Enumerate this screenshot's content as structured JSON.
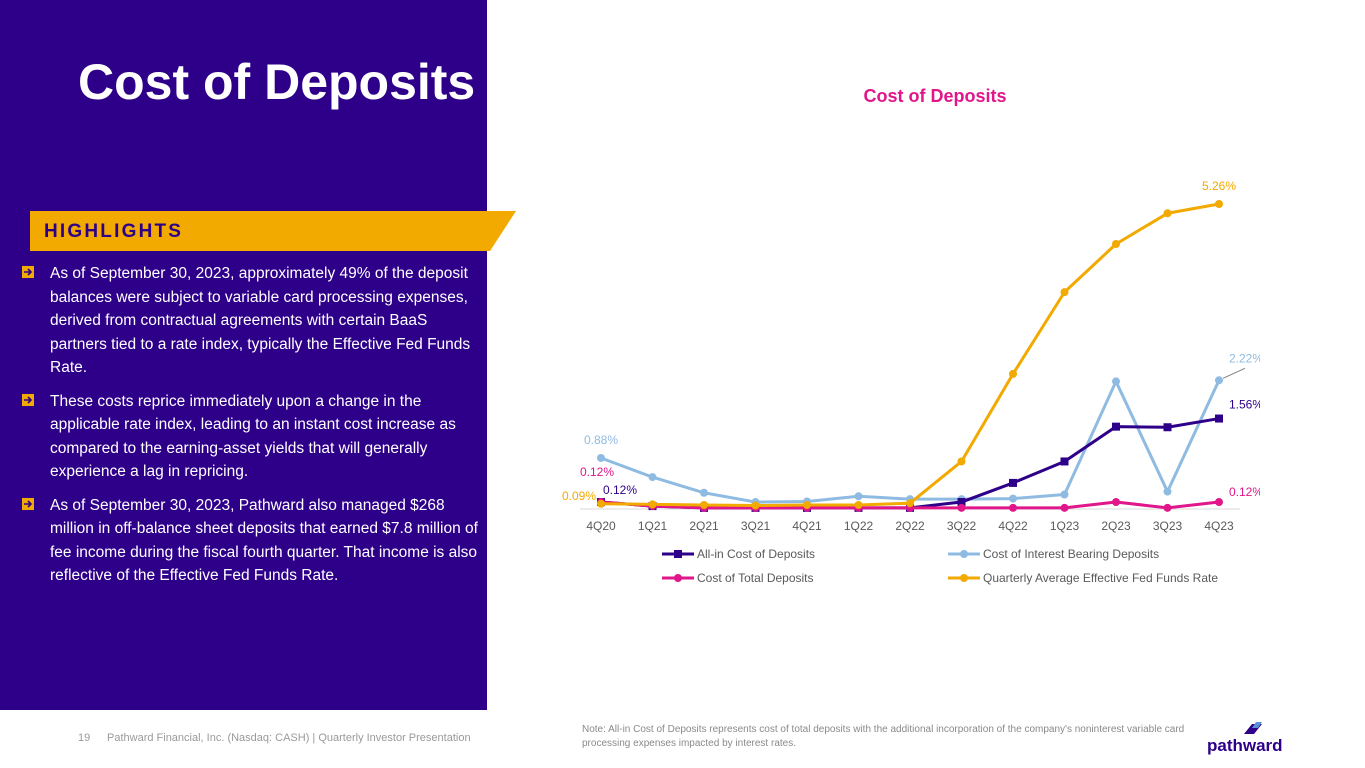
{
  "slide": {
    "title": "Cost of Deposits",
    "highlights_label": "HIGHLIGHTS",
    "bullets": [
      "As of September 30, 2023, approximately 49% of the deposit balances were subject to variable card processing expenses, derived from contractual agreements with certain BaaS partners tied to a rate index, typically the Effective Fed Funds Rate.",
      "These costs reprice immediately upon a change in the applicable rate index, leading to an instant cost increase as compared to the earning-asset yields that will generally experience a lag in repricing.",
      "As of September 30, 2023, Pathward also managed $268 million in off-balance sheet deposits that earned $7.8 million of fee income during the fiscal fourth quarter. That income is also reflective of the Effective Fed Funds Rate."
    ],
    "colors": {
      "panel": "#2e0089",
      "accent": "#f2a900",
      "magenta": "#e0168a"
    }
  },
  "footer": {
    "page_number": "19",
    "company": "Pathward Financial, Inc. (Nasdaq: CASH) | Quarterly Investor Presentation",
    "note": "Note: All-in Cost of Deposits represents cost of total deposits with the additional incorporation of the company's noninterest variable card processing expenses impacted by interest rates.",
    "logo_text": "pathward"
  },
  "chart_data": {
    "type": "line",
    "title": "Cost of Deposits",
    "categories": [
      "4Q20",
      "1Q21",
      "2Q21",
      "3Q21",
      "4Q21",
      "1Q22",
      "2Q22",
      "3Q22",
      "4Q22",
      "1Q23",
      "2Q23",
      "3Q23",
      "4Q23"
    ],
    "ylim": [
      0,
      5.5
    ],
    "grid": false,
    "legend_position": "bottom",
    "series": [
      {
        "name": "All-in Cost of Deposits",
        "color": "#2e0089",
        "marker": "square",
        "values": [
          0.12,
          0.05,
          0.02,
          0.02,
          0.02,
          0.02,
          0.02,
          0.12,
          0.45,
          0.82,
          1.42,
          1.41,
          1.56
        ]
      },
      {
        "name": "Cost of Interest Bearing Deposits",
        "color": "#8fbbe2",
        "marker": "circle",
        "values": [
          0.88,
          0.55,
          0.28,
          0.12,
          0.13,
          0.22,
          0.17,
          0.17,
          0.18,
          0.25,
          2.2,
          0.3,
          2.22
        ]
      },
      {
        "name": "Cost of Total Deposits",
        "color": "#e0168a",
        "marker": "circle",
        "values": [
          0.12,
          0.05,
          0.02,
          0.02,
          0.02,
          0.02,
          0.02,
          0.02,
          0.02,
          0.02,
          0.12,
          0.02,
          0.12
        ]
      },
      {
        "name": "Quarterly Average Effective Fed Funds Rate",
        "color": "#f2a900",
        "marker": "circle",
        "values": [
          0.09,
          0.08,
          0.07,
          0.06,
          0.07,
          0.07,
          0.1,
          0.82,
          2.33,
          3.74,
          4.57,
          5.1,
          5.26
        ]
      }
    ],
    "annotations": [
      {
        "text": "5.26%",
        "series": 3,
        "index": 12
      },
      {
        "text": "2.22%",
        "series": 1,
        "index": 12
      },
      {
        "text": "1.56%",
        "series": 0,
        "index": 12
      },
      {
        "text": "0.12%",
        "series": 2,
        "index": 12
      },
      {
        "text": "0.88%",
        "series": 1,
        "index": 0
      },
      {
        "text": "0.12%",
        "series": 2,
        "index": 0
      },
      {
        "text": "0.12%",
        "series": 0,
        "index": 0
      },
      {
        "text": "0.09%",
        "series": 3,
        "index": 0
      }
    ]
  }
}
